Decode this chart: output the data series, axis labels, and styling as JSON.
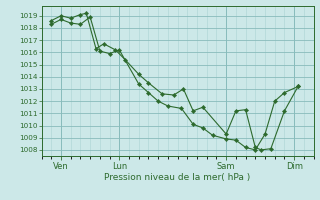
{
  "title": "",
  "xlabel": "Pression niveau de la mer( hPa )",
  "bg_color": "#cce8e8",
  "line_color": "#2d6a2d",
  "grid_minor_color": "#aad4d4",
  "grid_major_color": "#88bbbb",
  "ylim": [
    1007.5,
    1019.8
  ],
  "yticks": [
    1008,
    1009,
    1010,
    1011,
    1012,
    1013,
    1014,
    1015,
    1016,
    1017,
    1018,
    1019
  ],
  "xlim": [
    0,
    14
  ],
  "xtick_labels": [
    "Ven",
    "Lun",
    "Sam",
    "Dim"
  ],
  "xtick_positions": [
    1.0,
    4.0,
    9.5,
    13.0
  ],
  "series1_x": [
    0.5,
    1.0,
    1.5,
    2.0,
    2.3,
    2.8,
    3.2,
    3.8,
    4.3,
    5.0,
    5.5,
    6.2,
    6.8,
    7.3,
    7.8,
    8.3,
    9.5,
    10.0,
    10.5,
    11.0,
    11.3,
    11.8,
    12.5,
    13.2
  ],
  "series1_y": [
    1018.6,
    1019.0,
    1018.8,
    1019.1,
    1019.2,
    1016.3,
    1016.7,
    1016.2,
    1015.4,
    1014.2,
    1013.5,
    1012.6,
    1012.5,
    1013.0,
    1011.2,
    1011.5,
    1009.3,
    1011.2,
    1011.3,
    1008.2,
    1008.0,
    1008.1,
    1011.2,
    1013.2
  ],
  "series2_x": [
    0.5,
    1.0,
    1.5,
    2.0,
    2.5,
    3.0,
    3.5,
    4.0,
    5.0,
    5.5,
    6.0,
    6.5,
    7.2,
    7.8,
    8.3,
    8.8,
    9.5,
    10.0,
    10.5,
    11.0,
    11.5,
    12.0,
    12.5,
    13.2
  ],
  "series2_y": [
    1018.3,
    1018.7,
    1018.4,
    1018.3,
    1018.9,
    1016.1,
    1015.9,
    1016.2,
    1013.4,
    1012.7,
    1012.0,
    1011.6,
    1011.4,
    1010.1,
    1009.8,
    1009.2,
    1008.9,
    1008.8,
    1008.2,
    1008.0,
    1009.3,
    1012.0,
    1012.7,
    1013.2
  ]
}
